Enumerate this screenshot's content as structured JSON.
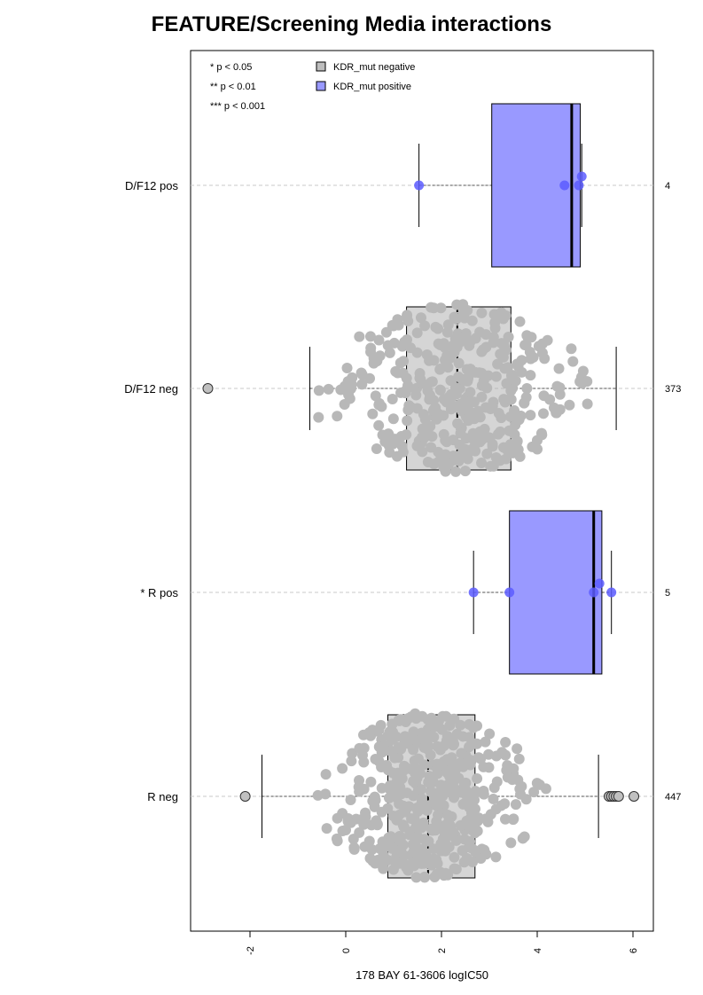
{
  "chart_data": {
    "type": "boxplot",
    "orientation": "horizontal",
    "title": "FEATURE/Screening Media interactions",
    "xlabel": "178 BAY 61-3606 logIC50",
    "ylabel": "",
    "xlim": [
      -3.25,
      6.4
    ],
    "xticks": [
      -2,
      0,
      2,
      4,
      6
    ],
    "grid": false,
    "significance_legend": [
      "* p < 0.05",
      "** p < 0.01",
      "*** p < 0.001"
    ],
    "legend": {
      "placement": "top-left",
      "entries": [
        {
          "label": "KDR_mut negative",
          "color": "#bebebe"
        },
        {
          "label": "KDR_mut positive",
          "color": "#9999ff"
        }
      ]
    },
    "groups": [
      {
        "label": "D/F12 pos",
        "n": "4",
        "status": "positive",
        "whisker_low": 1.53,
        "q1": 3.05,
        "median": 4.72,
        "q3": 4.9,
        "whisker_high": 4.93,
        "outliers": [],
        "points": [
          1.53,
          4.57,
          4.87,
          4.93
        ]
      },
      {
        "label": "D/F12 neg",
        "n": "373",
        "status": "negative",
        "whisker_low": -0.75,
        "q1": 1.27,
        "median": 2.33,
        "q3": 3.45,
        "whisker_high": 5.65,
        "outliers": [
          -2.88
        ],
        "beeswarm": {
          "count": 373,
          "min": -0.75,
          "max": 5.65
        }
      },
      {
        "label": "* R pos",
        "n": "5",
        "status": "positive",
        "whisker_low": 2.67,
        "q1": 3.42,
        "median": 5.18,
        "q3": 5.35,
        "whisker_high": 5.55,
        "outliers": [],
        "points": [
          2.67,
          3.42,
          5.18,
          5.3,
          5.55
        ]
      },
      {
        "label": "R neg",
        "n": "447",
        "status": "negative",
        "whisker_low": -1.75,
        "q1": 0.88,
        "median": 1.72,
        "q3": 2.7,
        "whisker_high": 5.28,
        "outliers": [
          -2.1,
          5.5,
          5.55,
          5.6,
          5.65,
          5.7,
          6.02
        ],
        "beeswarm": {
          "count": 447,
          "min": -1.75,
          "max": 5.28
        }
      }
    ],
    "colors": {
      "negative_box": "#b3b3b3",
      "negative_point": "#b8b8b8",
      "positive_box": "#9999ff",
      "positive_point": "#5c5cff",
      "guide_line": "#c8c8c8"
    }
  }
}
